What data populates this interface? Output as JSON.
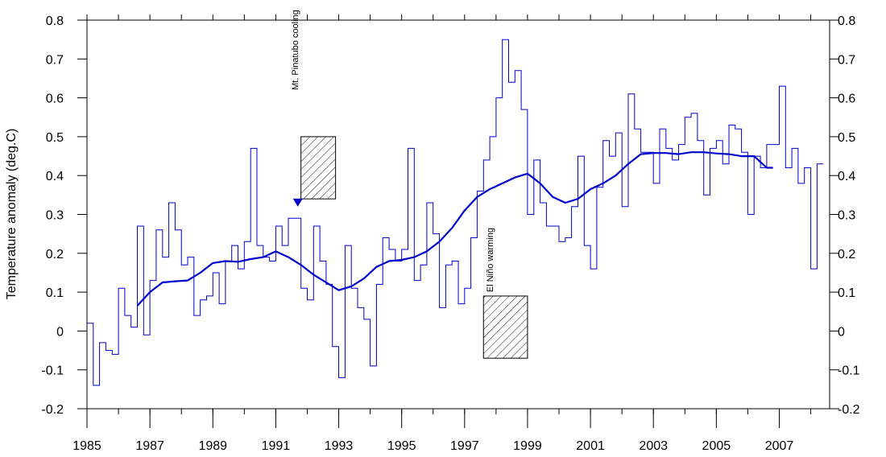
{
  "chart_data": {
    "type": "line",
    "title": "",
    "xlabel": "",
    "ylabel": "Temperature anomaly (deg.C)",
    "xlim": [
      1985.0,
      2008.6
    ],
    "ylim": [
      -0.2,
      0.8
    ],
    "x_ticks": [
      1985,
      1987,
      1989,
      1991,
      1993,
      1995,
      1997,
      1999,
      2001,
      2003,
      2005,
      2007
    ],
    "y_ticks": [
      -0.2,
      -0.1,
      0,
      0.1,
      0.2,
      0.3,
      0.4,
      0.5,
      0.6,
      0.7,
      0.8
    ],
    "y_tick_labels": [
      "-0.2",
      "-0.1",
      "0",
      "0.1",
      "0.2",
      "0.3",
      "0.4",
      "0.5",
      "0.6",
      "0.7",
      "0.8"
    ],
    "right_axis_mirror": true,
    "grid": false,
    "line_color": "#0000cc",
    "series": [
      {
        "style": "step",
        "x": [
          1985.0,
          1985.2,
          1985.4,
          1985.6,
          1985.8,
          1986.0,
          1986.2,
          1986.4,
          1986.6,
          1986.8,
          1987.0,
          1987.2,
          1987.4,
          1987.6,
          1987.8,
          1988.0,
          1988.2,
          1988.4,
          1988.6,
          1988.8,
          1989.0,
          1989.2,
          1989.4,
          1989.6,
          1989.8,
          1990.0,
          1990.2,
          1990.4,
          1990.6,
          1990.8,
          1991.0,
          1991.2,
          1991.4,
          1991.6,
          1991.8,
          1992.0,
          1992.2,
          1992.4,
          1992.6,
          1992.8,
          1993.0,
          1993.2,
          1993.4,
          1993.6,
          1993.8,
          1994.0,
          1994.2,
          1994.4,
          1994.6,
          1994.8,
          1995.0,
          1995.2,
          1995.4,
          1995.6,
          1995.8,
          1996.0,
          1996.2,
          1996.4,
          1996.6,
          1996.8,
          1997.0,
          1997.2,
          1997.4,
          1997.6,
          1997.8,
          1998.0,
          1998.2,
          1998.4,
          1998.6,
          1998.8,
          1999.0,
          1999.2,
          1999.4,
          1999.6,
          1999.8,
          2000.0,
          2000.2,
          2000.4,
          2000.6,
          2000.8,
          2001.0,
          2001.2,
          2001.4,
          2001.6,
          2001.8,
          2002.0,
          2002.2,
          2002.4,
          2002.6,
          2002.8,
          2003.0,
          2003.2,
          2003.4,
          2003.6,
          2003.8,
          2004.0,
          2004.2,
          2004.4,
          2004.6,
          2004.8,
          2005.0,
          2005.2,
          2005.4,
          2005.6,
          2005.8,
          2006.0,
          2006.2,
          2006.4,
          2006.6,
          2006.8,
          2007.0,
          2007.2,
          2007.4,
          2007.6,
          2007.8,
          2008.0,
          2008.2
        ],
        "values": [
          0.02,
          -0.14,
          -0.03,
          -0.05,
          -0.06,
          0.11,
          0.04,
          0.01,
          0.27,
          -0.01,
          0.13,
          0.26,
          0.19,
          0.33,
          0.26,
          0.17,
          0.19,
          0.04,
          0.08,
          0.09,
          0.15,
          0.07,
          0.18,
          0.22,
          0.16,
          0.23,
          0.47,
          0.22,
          0.19,
          0.18,
          0.27,
          0.22,
          0.29,
          0.29,
          0.11,
          0.08,
          0.27,
          0.18,
          0.12,
          -0.04,
          -0.12,
          0.22,
          0.11,
          0.06,
          0.03,
          -0.09,
          0.12,
          0.24,
          0.21,
          0.18,
          0.21,
          0.47,
          0.13,
          0.17,
          0.33,
          0.25,
          0.06,
          0.17,
          0.18,
          0.07,
          0.11,
          0.24,
          0.36,
          0.44,
          0.5,
          0.6,
          0.75,
          0.64,
          0.67,
          0.57,
          0.3,
          0.44,
          0.33,
          0.27,
          0.27,
          0.23,
          0.24,
          0.32,
          0.45,
          0.22,
          0.16,
          0.37,
          0.49,
          0.45,
          0.51,
          0.32,
          0.61,
          0.52,
          0.46,
          0.46,
          0.38,
          0.52,
          0.47,
          0.44,
          0.48,
          0.55,
          0.56,
          0.49,
          0.35,
          0.47,
          0.49,
          0.43,
          0.53,
          0.52,
          0.46,
          0.3,
          0.45,
          0.42,
          0.48,
          0.48,
          0.63,
          0.42,
          0.47,
          0.38,
          0.42,
          0.16,
          0.43
        ]
      },
      {
        "style": "line",
        "x": [
          1986.6,
          1987.0,
          1987.4,
          1987.8,
          1988.2,
          1988.6,
          1989.0,
          1989.4,
          1989.8,
          1990.2,
          1990.6,
          1991.0,
          1991.4,
          1991.8,
          1992.2,
          1992.6,
          1993.0,
          1993.4,
          1993.8,
          1994.2,
          1994.6,
          1995.0,
          1995.4,
          1995.8,
          1996.2,
          1996.6,
          1997.0,
          1997.4,
          1997.8,
          1998.2,
          1998.6,
          1999.0,
          1999.4,
          1999.8,
          2000.2,
          2000.6,
          2001.0,
          2001.4,
          2001.8,
          2002.2,
          2002.6,
          2003.0,
          2003.4,
          2003.8,
          2004.2,
          2004.6,
          2005.0,
          2005.4,
          2005.8,
          2006.2,
          2006.6,
          2006.8
        ],
        "values": [
          0.065,
          0.1,
          0.125,
          0.128,
          0.13,
          0.15,
          0.175,
          0.18,
          0.178,
          0.185,
          0.19,
          0.205,
          0.19,
          0.17,
          0.145,
          0.125,
          0.105,
          0.115,
          0.135,
          0.165,
          0.18,
          0.183,
          0.19,
          0.205,
          0.23,
          0.265,
          0.31,
          0.345,
          0.365,
          0.38,
          0.395,
          0.405,
          0.38,
          0.345,
          0.33,
          0.34,
          0.365,
          0.38,
          0.4,
          0.43,
          0.455,
          0.458,
          0.458,
          0.455,
          0.46,
          0.46,
          0.457,
          0.455,
          0.45,
          0.45,
          0.42,
          0.42
        ]
      }
    ],
    "annotations": [
      {
        "text": "Mt. Pinatubo cooling",
        "rotated": true,
        "anchor_x": 1991.7,
        "anchor_y": 0.62,
        "box_x": [
          1991.8,
          1992.9
        ],
        "box_y": [
          0.34,
          0.5
        ],
        "arrow_at": [
          1991.7,
          0.32
        ]
      },
      {
        "text": "El Niño warming",
        "rotated": true,
        "anchor_x": 1997.9,
        "anchor_y": 0.1,
        "box_x": [
          1997.6,
          1999.0
        ],
        "box_y": [
          -0.07,
          0.09
        ]
      }
    ]
  }
}
